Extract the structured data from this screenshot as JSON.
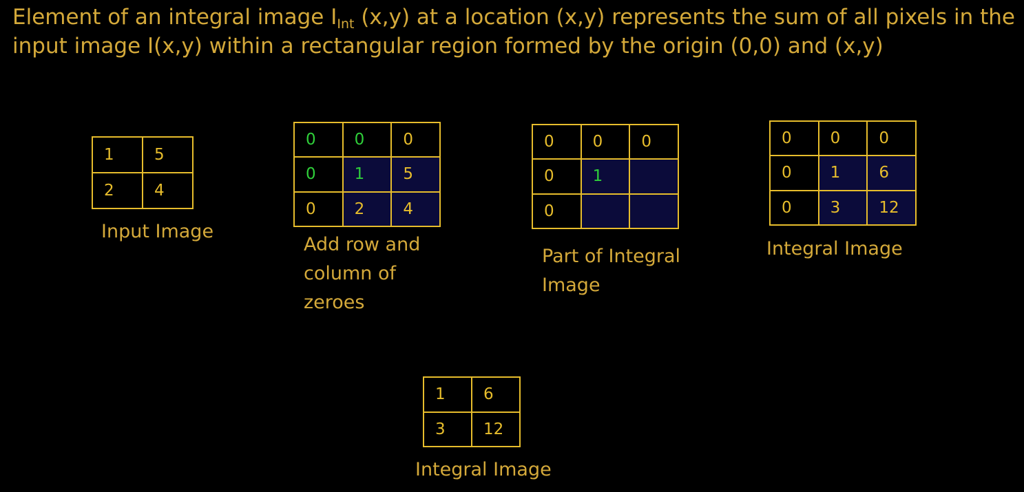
{
  "heading": {
    "part1": "Element of an integral image I",
    "subscript": "Int",
    "part2": " (x,y) at a location (x,y) represents the sum of all pixels in the input image I(x,y) within a rectangular region formed by the origin (0,0) and (x,y)"
  },
  "colors": {
    "background": "#000000",
    "text": "#d4a93a",
    "grid_border": "#e7bd2c",
    "cell_shaded": "#0b0b3a",
    "highlight_green": "#2fcf3a"
  },
  "grids": {
    "input_image": {
      "caption": "Input Image",
      "cells": [
        [
          "1",
          "5"
        ],
        [
          "2",
          "4"
        ]
      ]
    },
    "padded_image": {
      "caption": "Add row and column of zeroes",
      "cells": [
        [
          "0",
          "0",
          "0"
        ],
        [
          "0",
          "1",
          "5"
        ],
        [
          "0",
          "2",
          "4"
        ]
      ],
      "highlighted": [
        "0-0",
        "0-1",
        "1-0",
        "1-1"
      ],
      "shaded": [
        "1-1",
        "1-2",
        "2-1",
        "2-2"
      ]
    },
    "partial_integral": {
      "caption": "Part of Integral Image",
      "cells": [
        [
          "0",
          "0",
          "0"
        ],
        [
          "0",
          "1",
          ""
        ],
        [
          "0",
          "",
          ""
        ]
      ],
      "highlighted": [
        "1-1"
      ],
      "shaded": [
        "1-1",
        "1-2",
        "2-1",
        "2-2"
      ]
    },
    "integral_padded": {
      "caption": "Integral Image",
      "cells": [
        [
          "0",
          "0",
          "0"
        ],
        [
          "0",
          "1",
          "6"
        ],
        [
          "0",
          "3",
          "12"
        ]
      ],
      "shaded": [
        "1-1",
        "1-2",
        "2-1",
        "2-2"
      ]
    },
    "integral_final": {
      "caption": "Integral Image",
      "cells": [
        [
          "1",
          "6"
        ],
        [
          "3",
          "12"
        ]
      ]
    }
  }
}
